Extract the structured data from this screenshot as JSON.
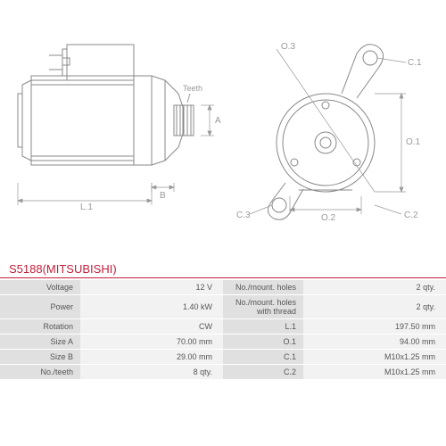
{
  "title": "S5188(MITSUBISHI)",
  "diagram_labels": {
    "teeth": "Teeth",
    "A": "A",
    "B": "B",
    "L1": "L.1",
    "O1": "O.1",
    "O2": "O.2",
    "O3": "O.3",
    "C1": "C.1",
    "C2": "C.2",
    "C3": "C.3"
  },
  "specs": [
    {
      "l1": "Voltage",
      "v1": "12 V",
      "l2": "No./mount. holes",
      "v2": "2 qty."
    },
    {
      "l1": "Power",
      "v1": "1.40 kW",
      "l2": "No./mount. holes with thread",
      "v2": "2 qty."
    },
    {
      "l1": "Rotation",
      "v1": "CW",
      "l2": "L.1",
      "v2": "197.50 mm"
    },
    {
      "l1": "Size A",
      "v1": "70.00 mm",
      "l2": "O.1",
      "v2": "94.00 mm"
    },
    {
      "l1": "Size B",
      "v1": "29.00 mm",
      "l2": "C.1",
      "v2": "M10x1.25 mm"
    },
    {
      "l1": "No./teeth",
      "v1": "8 qty.",
      "l2": "C.2",
      "v2": "M10x1.25 mm"
    }
  ],
  "colors": {
    "line": "#888888",
    "dim": "#999999",
    "title": "#c41e3a",
    "label_bg": "#e0e0e0",
    "value_bg": "#f2f2f2"
  }
}
